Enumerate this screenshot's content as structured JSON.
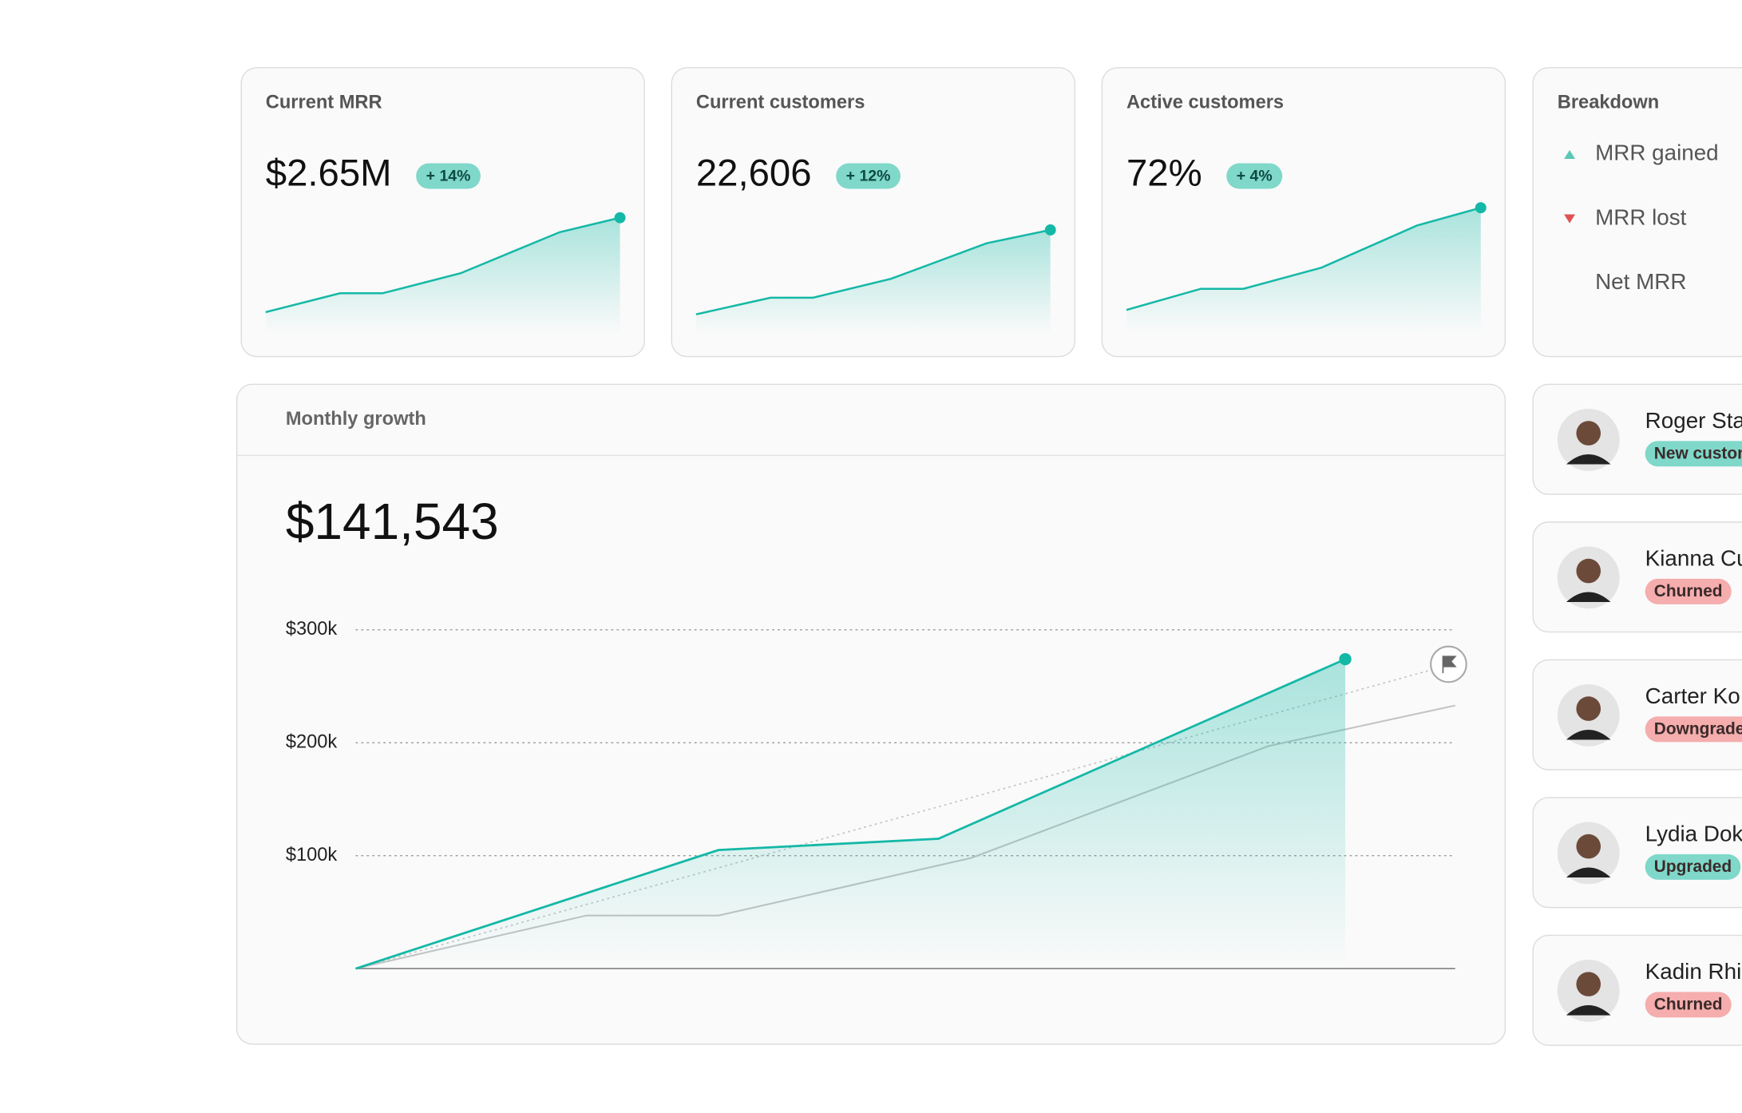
{
  "cards": [
    {
      "title": "Current MRR",
      "value": "$2.65M",
      "change": "+ 14%",
      "sparkline": {
        "x": [
          0,
          21,
          33,
          55,
          83,
          100
        ],
        "values": [
          20,
          37,
          37,
          55,
          92,
          105
        ]
      }
    },
    {
      "title": "Current customers",
      "value": "22,606",
      "change": "+ 12%",
      "sparkline": {
        "x": [
          0,
          21,
          33,
          55,
          82,
          100
        ],
        "values": [
          18,
          33,
          33,
          50,
          82,
          94
        ]
      }
    },
    {
      "title": "Active customers",
      "value": "72%",
      "change": "+ 4%",
      "sparkline": {
        "x": [
          0,
          21,
          33,
          55,
          82,
          100
        ],
        "values": [
          22,
          41,
          41,
          60,
          98,
          114
        ]
      }
    }
  ],
  "sparkline_ylim": [
    0,
    120
  ],
  "breakdown": {
    "title": "Breakdown",
    "items": [
      "MRR gained",
      "MRR lost",
      "Net MRR"
    ]
  },
  "chart_data": {
    "type": "line",
    "title": "Monthly growth",
    "value": "$141,543",
    "xlim": [
      0,
      100
    ],
    "ylim": [
      0,
      300000
    ],
    "yticks": [
      {
        "value": 100000,
        "label": "$100k"
      },
      {
        "value": 200000,
        "label": "$200k"
      },
      {
        "value": 300000,
        "label": "$300k"
      }
    ],
    "grid": true,
    "series": [
      {
        "color": "#14b8a6",
        "style": "solid",
        "area": true,
        "x": [
          0,
          33,
          53,
          90
        ],
        "values": [
          0,
          105000,
          115000,
          274000
        ]
      },
      {
        "color": "#c4c4c4",
        "style": "solid",
        "area": false,
        "x": [
          0,
          21,
          33,
          56,
          83,
          100
        ],
        "values": [
          0,
          47000,
          47000,
          98000,
          197000,
          233000
        ]
      },
      {
        "color": "#c4c4c4",
        "style": "dashed",
        "area": false,
        "x": [
          0,
          98
        ],
        "values": [
          0,
          265000
        ]
      }
    ]
  },
  "customers": [
    {
      "name": "Roger Sta",
      "status": "New custom",
      "tag_color": "#7fd8c9"
    },
    {
      "name": "Kianna Cu",
      "status": "Churned",
      "tag_color": "#f5adad"
    },
    {
      "name": "Carter Ko",
      "status": "Downgrade",
      "tag_color": "#f5adad"
    },
    {
      "name": "Lydia Dok",
      "status": "Upgraded",
      "tag_color": "#7fd8c9"
    },
    {
      "name": "Kadin Rhi",
      "status": "Churned",
      "tag_color": "#f5adad"
    }
  ]
}
